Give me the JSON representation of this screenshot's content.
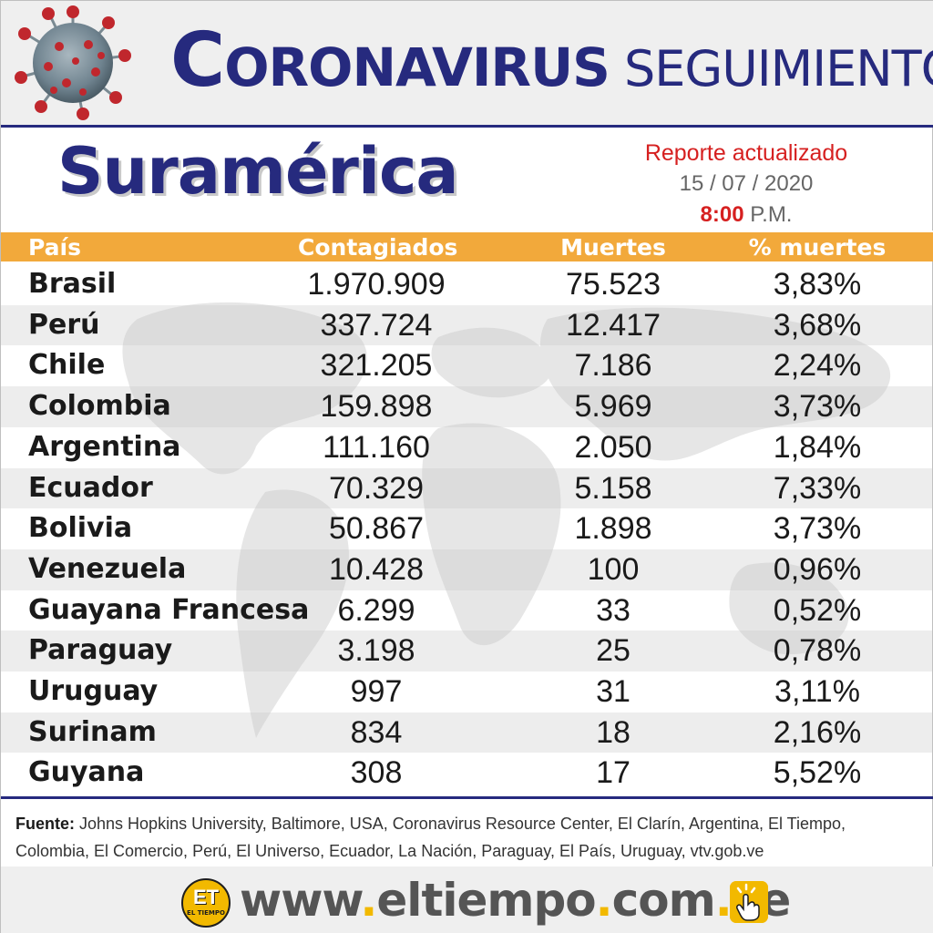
{
  "header": {
    "title_initial": "C",
    "title_rest": "ORONAVIRUS",
    "title_suffix": "SEGUIMIENTO"
  },
  "region": "Suramérica",
  "report": {
    "label": "Reporte actualizado",
    "date": "15 / 07 / 2020",
    "time": "8:00",
    "meridiem": "P.M."
  },
  "table": {
    "columns": {
      "country": "País",
      "cases": "Contagiados",
      "deaths": "Muertes",
      "pct": "% muertes"
    },
    "rows": [
      {
        "country": "Brasil",
        "cases": "1.970.909",
        "deaths": "75.523",
        "pct": "3,83%"
      },
      {
        "country": "Perú",
        "cases": "337.724",
        "deaths": "12.417",
        "pct": "3,68%"
      },
      {
        "country": "Chile",
        "cases": "321.205",
        "deaths": "7.186",
        "pct": "2,24%"
      },
      {
        "country": "Colombia",
        "cases": "159.898",
        "deaths": "5.969",
        "pct": "3,73%"
      },
      {
        "country": "Argentina",
        "cases": "111.160",
        "deaths": "2.050",
        "pct": "1,84%"
      },
      {
        "country": "Ecuador",
        "cases": "70.329",
        "deaths": "5.158",
        "pct": "7,33%"
      },
      {
        "country": "Bolivia",
        "cases": "50.867",
        "deaths": "1.898",
        "pct": "3,73%"
      },
      {
        "country": "Venezuela",
        "cases": "10.428",
        "deaths": "100",
        "pct": "0,96%"
      },
      {
        "country": "Guayana Francesa",
        "cases": "6.299",
        "deaths": "33",
        "pct": "0,52%"
      },
      {
        "country": "Paraguay",
        "cases": "3.198",
        "deaths": "25",
        "pct": "0,78%"
      },
      {
        "country": "Uruguay",
        "cases": "997",
        "deaths": "31",
        "pct": "3,11%"
      },
      {
        "country": "Surinam",
        "cases": "834",
        "deaths": "18",
        "pct": "2,16%"
      },
      {
        "country": "Guyana",
        "cases": "308",
        "deaths": "17",
        "pct": "5,52%"
      }
    ]
  },
  "source": {
    "label": "Fuente:",
    "text": "Johns Hopkins University, Baltimore, USA, Coronavirus Resource Center,  El Clarín, Argentina, El Tiempo, Colombia, El Comercio, Perú, El Universo, Ecuador, La Nación, Paraguay, El País, Uruguay, vtv.gob.ve"
  },
  "footer": {
    "logo_initials": "ET",
    "logo_name": "EL TIEMPO",
    "site_www": "www",
    "site_name": "eltiempo",
    "site_com": "com",
    "site_tld": "ve"
  },
  "colors": {
    "navy": "#262a7e",
    "orange": "#f2a93b",
    "red": "#d62020",
    "yellow": "#f2b900"
  },
  "icons": [
    "coronavirus-icon",
    "world-map-watermark",
    "el-tiempo-logo",
    "click-hand-icon"
  ]
}
